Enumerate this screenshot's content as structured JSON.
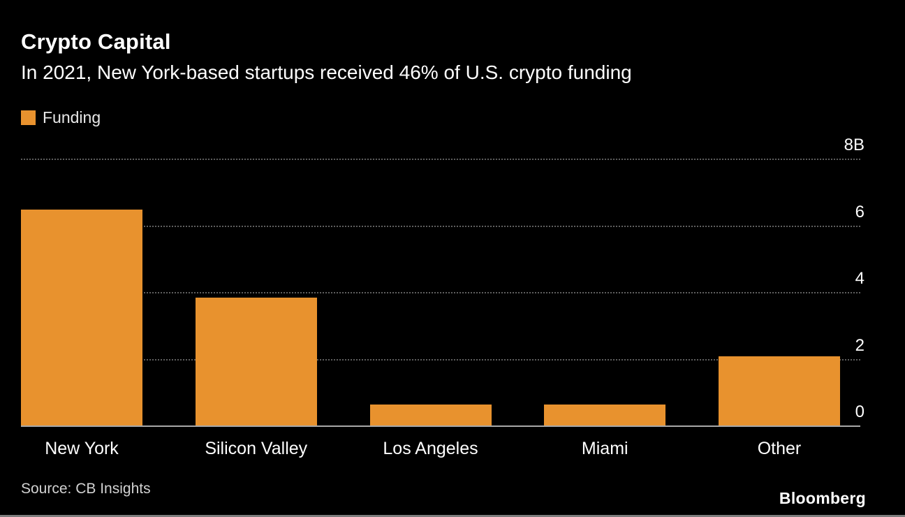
{
  "page": {
    "source": "Source: CB Insights",
    "brand": "Bloomberg"
  },
  "chart_data": {
    "type": "bar",
    "title": "Crypto Capital",
    "subtitle": "In 2021, New York-based startups received 46% of U.S. crypto funding",
    "legend": [
      {
        "label": "Funding",
        "color": "#E8922E"
      }
    ],
    "legend_position": "top-left",
    "categories": [
      "New York",
      "Silicon Valley",
      "Los Angeles",
      "Miami",
      "Other"
    ],
    "values": [
      6.5,
      3.85,
      0.65,
      0.65,
      2.1
    ],
    "unit": "billions USD",
    "ylim": [
      0,
      8
    ],
    "yticks": [
      {
        "value": 8,
        "label": "8B"
      },
      {
        "value": 6,
        "label": "6"
      },
      {
        "value": 4,
        "label": "4"
      },
      {
        "value": 2,
        "label": "2"
      },
      {
        "value": 0,
        "label": "0"
      }
    ],
    "grid": "horizontal dotted, zero baseline solid",
    "bar_color": "#E8922E",
    "background_color": "#000000",
    "source": "Source: CB Insights"
  }
}
